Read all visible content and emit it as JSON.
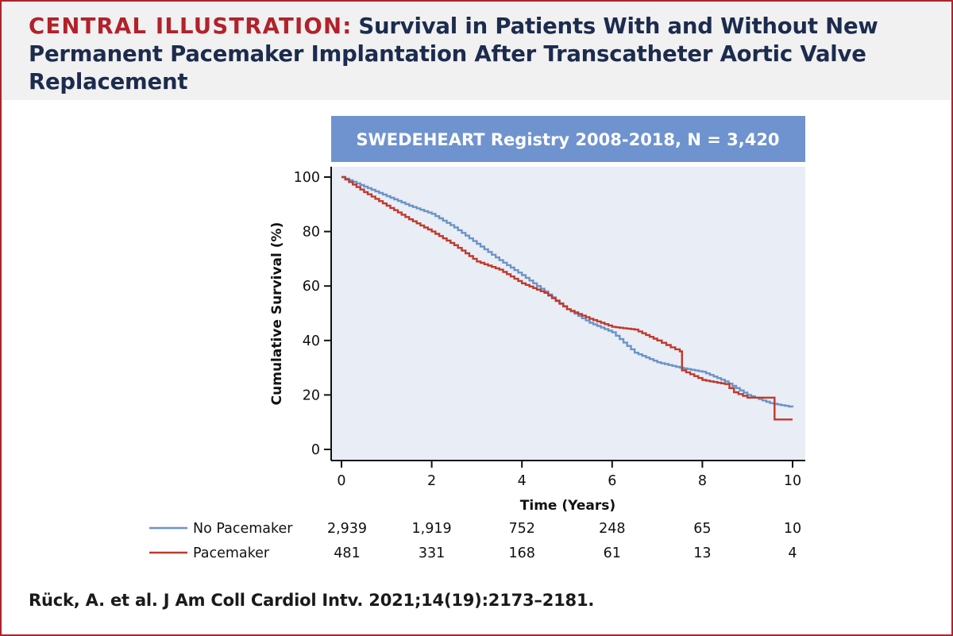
{
  "header": {
    "label": "CENTRAL ILLUSTRATION:",
    "title": "Survival in Patients With and Without New Permanent Pacemaker Implantation After Transcatheter Aortic Valve Replacement"
  },
  "citation": "Rück, A. et al. J Am Coll Cardiol Intv. 2021;14(19):2173–2181.",
  "colors": {
    "brand_red": "#b1222c",
    "title_navy": "#1c2b4e",
    "banner_blue": "#6f93cf",
    "plot_bg": "#e9edf5",
    "no_pacemaker": "#6b94c8",
    "pacemaker": "#c0392b"
  },
  "chart_data": {
    "type": "line",
    "subtype": "kaplan-meier-step",
    "banner": "SWEDEHEART Registry 2008-2018, N = 3,420",
    "xlabel": "Time (Years)",
    "ylabel": "Cumulative Survival (%)",
    "xlim": [
      0,
      10
    ],
    "ylim": [
      0,
      100
    ],
    "xticks": [
      "0",
      "2",
      "4",
      "6",
      "8",
      "10"
    ],
    "yticks": [
      "0",
      "20",
      "40",
      "60",
      "80",
      "100"
    ],
    "series": [
      {
        "name": "No Pacemaker",
        "color": "#6b94c8",
        "x": [
          0,
          0.5,
          1,
          1.5,
          2,
          2.5,
          3,
          3.5,
          4,
          4.5,
          5,
          5.5,
          6,
          6.5,
          7,
          7.5,
          8,
          8.5,
          9,
          9.5,
          10
        ],
        "y": [
          100,
          96.5,
          93,
          89.5,
          86.5,
          81.5,
          75.5,
          69.5,
          64,
          58,
          51.5,
          46.5,
          43,
          35.5,
          32,
          30,
          28.5,
          25,
          20,
          17,
          15.5
        ],
        "risk": [
          "2,939",
          "1,919",
          "752",
          "248",
          "65",
          "10"
        ]
      },
      {
        "name": "Pacemaker",
        "color": "#c0392b",
        "x": [
          0,
          0.5,
          1,
          1.5,
          2,
          2.5,
          3,
          3.5,
          4,
          4.5,
          5,
          5.5,
          6,
          6.5,
          7,
          7.3,
          7.5,
          7.55,
          8,
          8.5,
          8.7,
          9,
          9.5,
          9.6,
          10
        ],
        "y": [
          100,
          94.5,
          89.5,
          84.5,
          80,
          75,
          69,
          66,
          61,
          57.5,
          51.5,
          48,
          45,
          44,
          40,
          37.5,
          36,
          29,
          25.5,
          24,
          21,
          19,
          19,
          11,
          11
        ],
        "risk": [
          "481",
          "331",
          "168",
          "61",
          "13",
          "4"
        ]
      }
    ],
    "risk_x": [
      0,
      2,
      4,
      6,
      8,
      10
    ]
  }
}
